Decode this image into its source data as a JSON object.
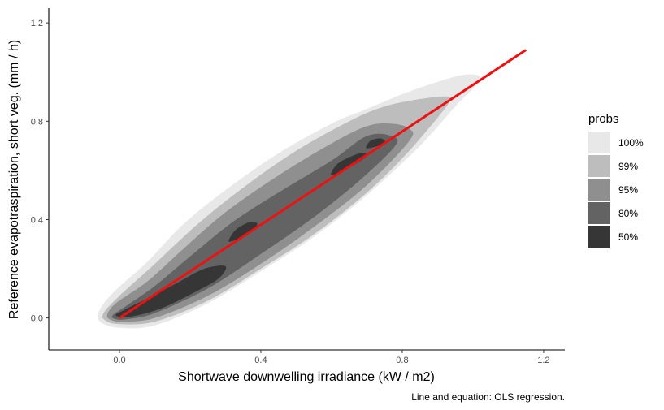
{
  "chart_data": {
    "type": "density-contour",
    "xlabel": "Shortwave downwelling irradiance (kW / m2)",
    "ylabel": "Reference evapotraspiration, short veg. (mm / h)",
    "caption": "Line and equation: OLS regression.",
    "xlim": [
      -0.2,
      1.26
    ],
    "ylim": [
      -0.13,
      1.26
    ],
    "x_ticks": [
      0.0,
      0.4,
      0.8,
      1.2
    ],
    "y_ticks": [
      0.0,
      0.4,
      0.8,
      1.2
    ],
    "x_tick_labels": [
      "0.0",
      "0.4",
      "0.8",
      "1.2"
    ],
    "y_tick_labels": [
      "0.0",
      "0.4",
      "0.8",
      "1.2"
    ],
    "grid": false,
    "legend": {
      "title": "probs",
      "position": "right",
      "entries": [
        {
          "label": "100%",
          "color": "#e8e8e8"
        },
        {
          "label": "99%",
          "color": "#bdbdbd"
        },
        {
          "label": "95%",
          "color": "#8f8f8f"
        },
        {
          "label": "80%",
          "color": "#636363"
        },
        {
          "label": "50%",
          "color": "#363636"
        }
      ]
    },
    "regions": [
      {
        "label": "100%",
        "color": "#e8e8e8",
        "points": [
          [
            0.0,
            -0.04
          ],
          [
            0.1,
            -0.03
          ],
          [
            0.25,
            0.06
          ],
          [
            0.4,
            0.19
          ],
          [
            0.55,
            0.33
          ],
          [
            0.7,
            0.5
          ],
          [
            0.85,
            0.7
          ],
          [
            0.95,
            0.86
          ],
          [
            1.02,
            0.97
          ],
          [
            0.98,
            0.99
          ],
          [
            0.9,
            0.96
          ],
          [
            0.8,
            0.91
          ],
          [
            0.7,
            0.85
          ],
          [
            0.6,
            0.79
          ],
          [
            0.45,
            0.67
          ],
          [
            0.3,
            0.52
          ],
          [
            0.18,
            0.38
          ],
          [
            0.08,
            0.23
          ],
          [
            -0.02,
            0.1
          ],
          [
            -0.06,
            0.02
          ],
          [
            -0.05,
            -0.02
          ]
        ]
      },
      {
        "label": "99%",
        "color": "#bdbdbd",
        "points": [
          [
            0.0,
            -0.025
          ],
          [
            0.1,
            -0.015
          ],
          [
            0.25,
            0.07
          ],
          [
            0.4,
            0.2
          ],
          [
            0.55,
            0.34
          ],
          [
            0.7,
            0.51
          ],
          [
            0.82,
            0.68
          ],
          [
            0.93,
            0.87
          ],
          [
            0.93,
            0.9
          ],
          [
            0.85,
            0.89
          ],
          [
            0.75,
            0.86
          ],
          [
            0.65,
            0.8
          ],
          [
            0.5,
            0.68
          ],
          [
            0.35,
            0.53
          ],
          [
            0.22,
            0.38
          ],
          [
            0.1,
            0.22
          ],
          [
            0.0,
            0.09
          ],
          [
            -0.045,
            0.02
          ],
          [
            -0.04,
            -0.01
          ]
        ]
      },
      {
        "label": "95%",
        "color": "#8f8f8f",
        "points": [
          [
            0.01,
            -0.015
          ],
          [
            0.1,
            0.0
          ],
          [
            0.25,
            0.09
          ],
          [
            0.4,
            0.22
          ],
          [
            0.55,
            0.37
          ],
          [
            0.7,
            0.54
          ],
          [
            0.82,
            0.72
          ],
          [
            0.82,
            0.77
          ],
          [
            0.77,
            0.79
          ],
          [
            0.7,
            0.78
          ],
          [
            0.6,
            0.71
          ],
          [
            0.45,
            0.58
          ],
          [
            0.3,
            0.43
          ],
          [
            0.18,
            0.28
          ],
          [
            0.08,
            0.15
          ],
          [
            -0.01,
            0.06
          ],
          [
            -0.035,
            0.01
          ],
          [
            -0.02,
            -0.01
          ]
        ]
      },
      {
        "label": "80%",
        "color": "#636363",
        "points": [
          [
            0.02,
            -0.005
          ],
          [
            0.1,
            0.02
          ],
          [
            0.25,
            0.12
          ],
          [
            0.4,
            0.26
          ],
          [
            0.55,
            0.41
          ],
          [
            0.68,
            0.56
          ],
          [
            0.78,
            0.7
          ],
          [
            0.77,
            0.74
          ],
          [
            0.7,
            0.74
          ],
          [
            0.6,
            0.64
          ],
          [
            0.45,
            0.51
          ],
          [
            0.32,
            0.39
          ],
          [
            0.2,
            0.25
          ],
          [
            0.1,
            0.13
          ],
          [
            0.02,
            0.05
          ],
          [
            -0.02,
            0.01
          ],
          [
            -0.01,
            -0.005
          ]
        ]
      },
      {
        "label": "50%",
        "color": "#363636",
        "points": [
          [
            0.03,
            0.005
          ],
          [
            0.12,
            0.04
          ],
          [
            0.22,
            0.11
          ],
          [
            0.28,
            0.16
          ],
          [
            0.3,
            0.21
          ],
          [
            0.24,
            0.2
          ],
          [
            0.16,
            0.14
          ],
          [
            0.08,
            0.08
          ],
          [
            0.01,
            0.03
          ],
          [
            -0.01,
            0.01
          ]
        ]
      },
      {
        "label": "50%",
        "color": "#363636",
        "points": [
          [
            0.31,
            0.31
          ],
          [
            0.36,
            0.34
          ],
          [
            0.39,
            0.38
          ],
          [
            0.37,
            0.39
          ],
          [
            0.33,
            0.36
          ]
        ]
      },
      {
        "label": "50%",
        "color": "#363636",
        "points": [
          [
            0.6,
            0.58
          ],
          [
            0.66,
            0.62
          ],
          [
            0.7,
            0.66
          ],
          [
            0.68,
            0.67
          ],
          [
            0.62,
            0.63
          ]
        ]
      },
      {
        "label": "50%",
        "color": "#363636",
        "points": [
          [
            0.7,
            0.69
          ],
          [
            0.75,
            0.71
          ],
          [
            0.74,
            0.73
          ],
          [
            0.71,
            0.72
          ]
        ]
      }
    ],
    "regression_line": {
      "color": "#ee1111",
      "x": [
        0.0,
        1.15
      ],
      "y": [
        0.0,
        1.09
      ]
    }
  }
}
